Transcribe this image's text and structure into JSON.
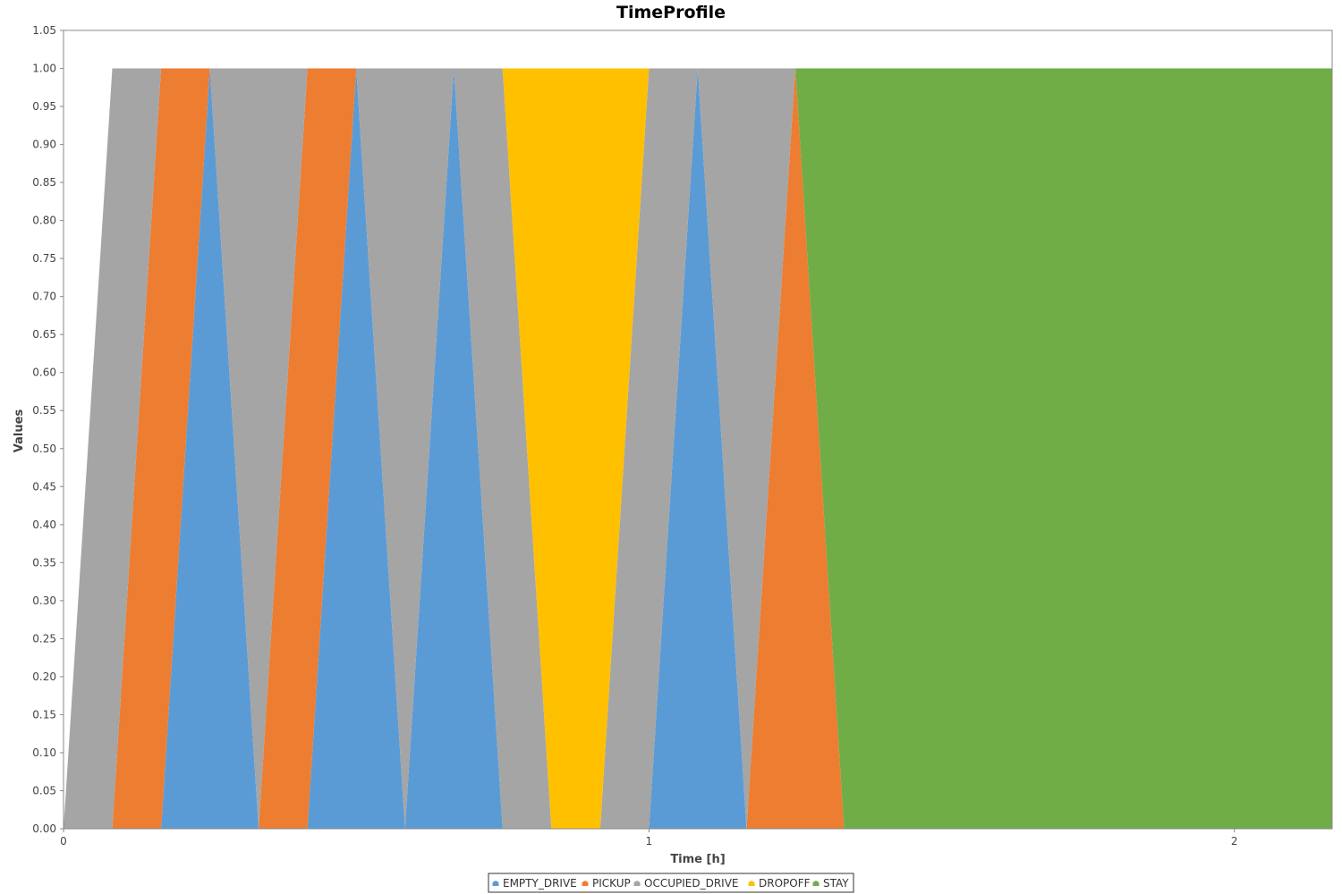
{
  "chart_data": {
    "type": "area",
    "stacked": true,
    "title": "TimeProfile",
    "xlabel": "Time [h]",
    "ylabel": "Values",
    "xlim": [
      0,
      2.167
    ],
    "ylim": [
      0,
      1.05
    ],
    "xticks": [
      "0",
      "1",
      "2"
    ],
    "yticks": [
      "0.00",
      "0.05",
      "0.10",
      "0.15",
      "0.20",
      "0.25",
      "0.30",
      "0.35",
      "0.40",
      "0.45",
      "0.50",
      "0.55",
      "0.60",
      "0.65",
      "0.70",
      "0.75",
      "0.80",
      "0.85",
      "0.90",
      "0.95",
      "1.00",
      "1.05"
    ],
    "grid": false,
    "legend_position": "bottom",
    "x": [
      0,
      0.0833,
      0.1667,
      0.25,
      0.3333,
      0.4167,
      0.5,
      0.5833,
      0.6667,
      0.75,
      0.8333,
      0.9167,
      1.0,
      1.0833,
      1.1667,
      1.25,
      1.3333,
      1.4167,
      2.167
    ],
    "series": [
      {
        "name": "EMPTY_DRIVE",
        "color": "#5b9bd5",
        "values": [
          0,
          0,
          0,
          1,
          0,
          0,
          1,
          0,
          1,
          0,
          0,
          0,
          0,
          1,
          0,
          0,
          0,
          0,
          0
        ]
      },
      {
        "name": "PICKUP",
        "color": "#ed7d31",
        "values": [
          0,
          0,
          1,
          0,
          0,
          1,
          0,
          0,
          0,
          0,
          0,
          0,
          0,
          0,
          0,
          1,
          0,
          0,
          0
        ]
      },
      {
        "name": "OCCUPIED_DRIVE",
        "color": "#a5a5a5",
        "values": [
          0,
          1,
          0,
          0,
          1,
          0,
          0,
          1,
          0,
          1,
          0,
          0,
          1,
          0,
          1,
          0,
          0,
          0,
          0
        ]
      },
      {
        "name": "DROPOFF",
        "color": "#ffc000",
        "values": [
          0,
          0,
          0,
          0,
          0,
          0,
          0,
          0,
          0,
          0,
          1,
          1,
          0,
          0,
          0,
          0,
          0,
          0,
          0
        ]
      },
      {
        "name": "STAY",
        "color": "#70ad47",
        "values": [
          0,
          0,
          0,
          0,
          0,
          0,
          0,
          0,
          0,
          0,
          0,
          0,
          0,
          0,
          0,
          0,
          1,
          1,
          1
        ]
      }
    ]
  }
}
